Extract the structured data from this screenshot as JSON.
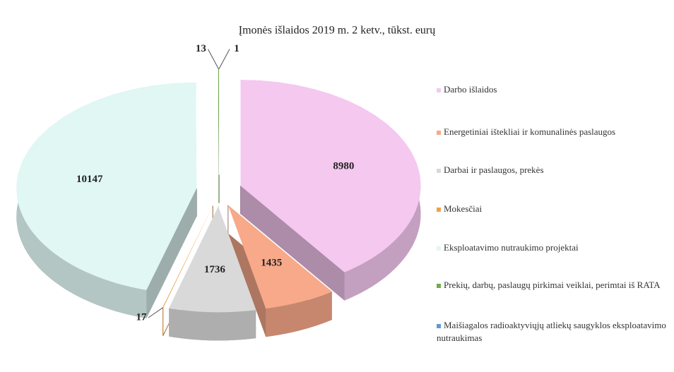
{
  "chart_data": {
    "type": "pie",
    "title": "Įmonės išlaidos 2019 m. 2 ketv., tūkst. eurų",
    "categories": [
      "Darbo išlaidos",
      "Energetiniai ištekliai ir komunalinės paslaugos",
      "Darbai ir paslaugos, prekės",
      "Mokesčiai",
      "Eksploatavimo nutraukimo projektai",
      "Prekių, darbų, paslaugų pirkimai veiklai, perimtai iš RATA",
      "Maišiagalos radioaktyviųjų atliekų saugyklos eksploatavimo nutraukimas"
    ],
    "values": [
      8980,
      1435,
      1736,
      17,
      10147,
      13,
      1
    ],
    "colors": [
      "#f5c8f0",
      "#f7a98a",
      "#d9d9d9",
      "#f0a04b",
      "#e0f7f4",
      "#70ad47",
      "#5b9bd5"
    ],
    "legend": "right"
  }
}
